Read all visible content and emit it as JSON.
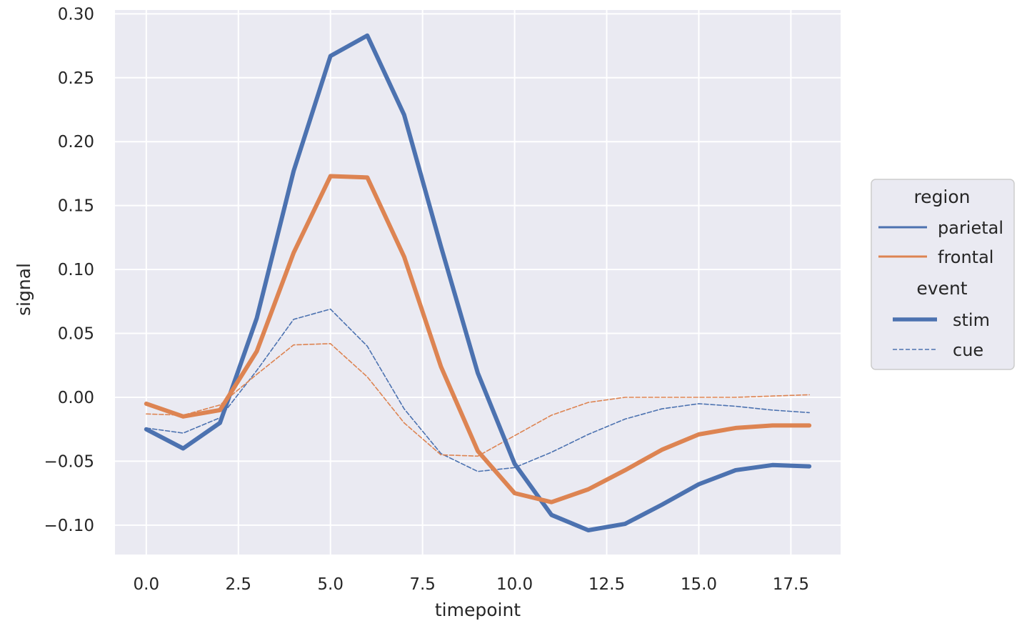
{
  "chart_data": {
    "type": "line",
    "xlabel": "timepoint",
    "ylabel": "signal",
    "xlim": [
      -0.85,
      18.85
    ],
    "ylim": [
      -0.123,
      0.303
    ],
    "xticks": [
      0,
      2.5,
      5,
      7.5,
      10,
      12.5,
      15,
      17.5
    ],
    "xtick_labels": [
      "0.0",
      "2.5",
      "5.0",
      "7.5",
      "10.0",
      "12.5",
      "15.0",
      "17.5"
    ],
    "yticks": [
      -0.1,
      -0.05,
      0,
      0.05,
      0.1,
      0.15,
      0.2,
      0.25,
      0.3
    ],
    "ytick_labels": [
      "−0.10",
      "−0.05",
      "0.00",
      "0.05",
      "0.10",
      "0.15",
      "0.20",
      "0.25",
      "0.30"
    ],
    "grid": true,
    "legend_position": "right",
    "x": [
      0,
      1,
      2,
      3,
      4,
      5,
      6,
      7,
      8,
      9,
      10,
      11,
      12,
      13,
      14,
      15,
      16,
      17,
      18
    ],
    "series": [
      {
        "region": "parietal",
        "event": "stim",
        "color": "#4c72b0",
        "style": "solid",
        "values": [
          -0.025,
          -0.04,
          -0.02,
          0.062,
          0.177,
          0.267,
          0.283,
          0.221,
          0.118,
          0.019,
          -0.052,
          -0.092,
          -0.104,
          -0.099,
          -0.084,
          -0.068,
          -0.057,
          -0.053,
          -0.054
        ]
      },
      {
        "region": "frontal",
        "event": "stim",
        "color": "#dd8452",
        "style": "solid",
        "values": [
          -0.005,
          -0.015,
          -0.01,
          0.036,
          0.113,
          0.173,
          0.172,
          0.11,
          0.024,
          -0.042,
          -0.075,
          -0.082,
          -0.072,
          -0.057,
          -0.041,
          -0.029,
          -0.024,
          -0.022,
          -0.022
        ]
      },
      {
        "region": "parietal",
        "event": "cue",
        "color": "#4c72b0",
        "style": "dashed",
        "values": [
          -0.024,
          -0.028,
          -0.016,
          0.021,
          0.061,
          0.069,
          0.04,
          -0.009,
          -0.044,
          -0.058,
          -0.055,
          -0.043,
          -0.029,
          -0.017,
          -0.009,
          -0.005,
          -0.007,
          -0.01,
          -0.012
        ]
      },
      {
        "region": "frontal",
        "event": "cue",
        "color": "#dd8452",
        "style": "dashed",
        "values": [
          -0.013,
          -0.014,
          -0.006,
          0.018,
          0.041,
          0.042,
          0.016,
          -0.02,
          -0.045,
          -0.046,
          -0.03,
          -0.014,
          -0.004,
          -0.0,
          0.0,
          0.0,
          0.0,
          0.001,
          0.002
        ]
      }
    ]
  },
  "legend": {
    "region_title": "region",
    "region_items": [
      {
        "label": "parietal",
        "color": "#4c72b0"
      },
      {
        "label": "frontal",
        "color": "#dd8452"
      }
    ],
    "event_title": "event",
    "event_items": [
      {
        "label": "stim",
        "style": "solid"
      },
      {
        "label": "cue",
        "style": "dashed"
      }
    ]
  },
  "colors": {
    "plot_background": "#eaeaf2",
    "grid": "#ffffff",
    "text": "#262626"
  }
}
